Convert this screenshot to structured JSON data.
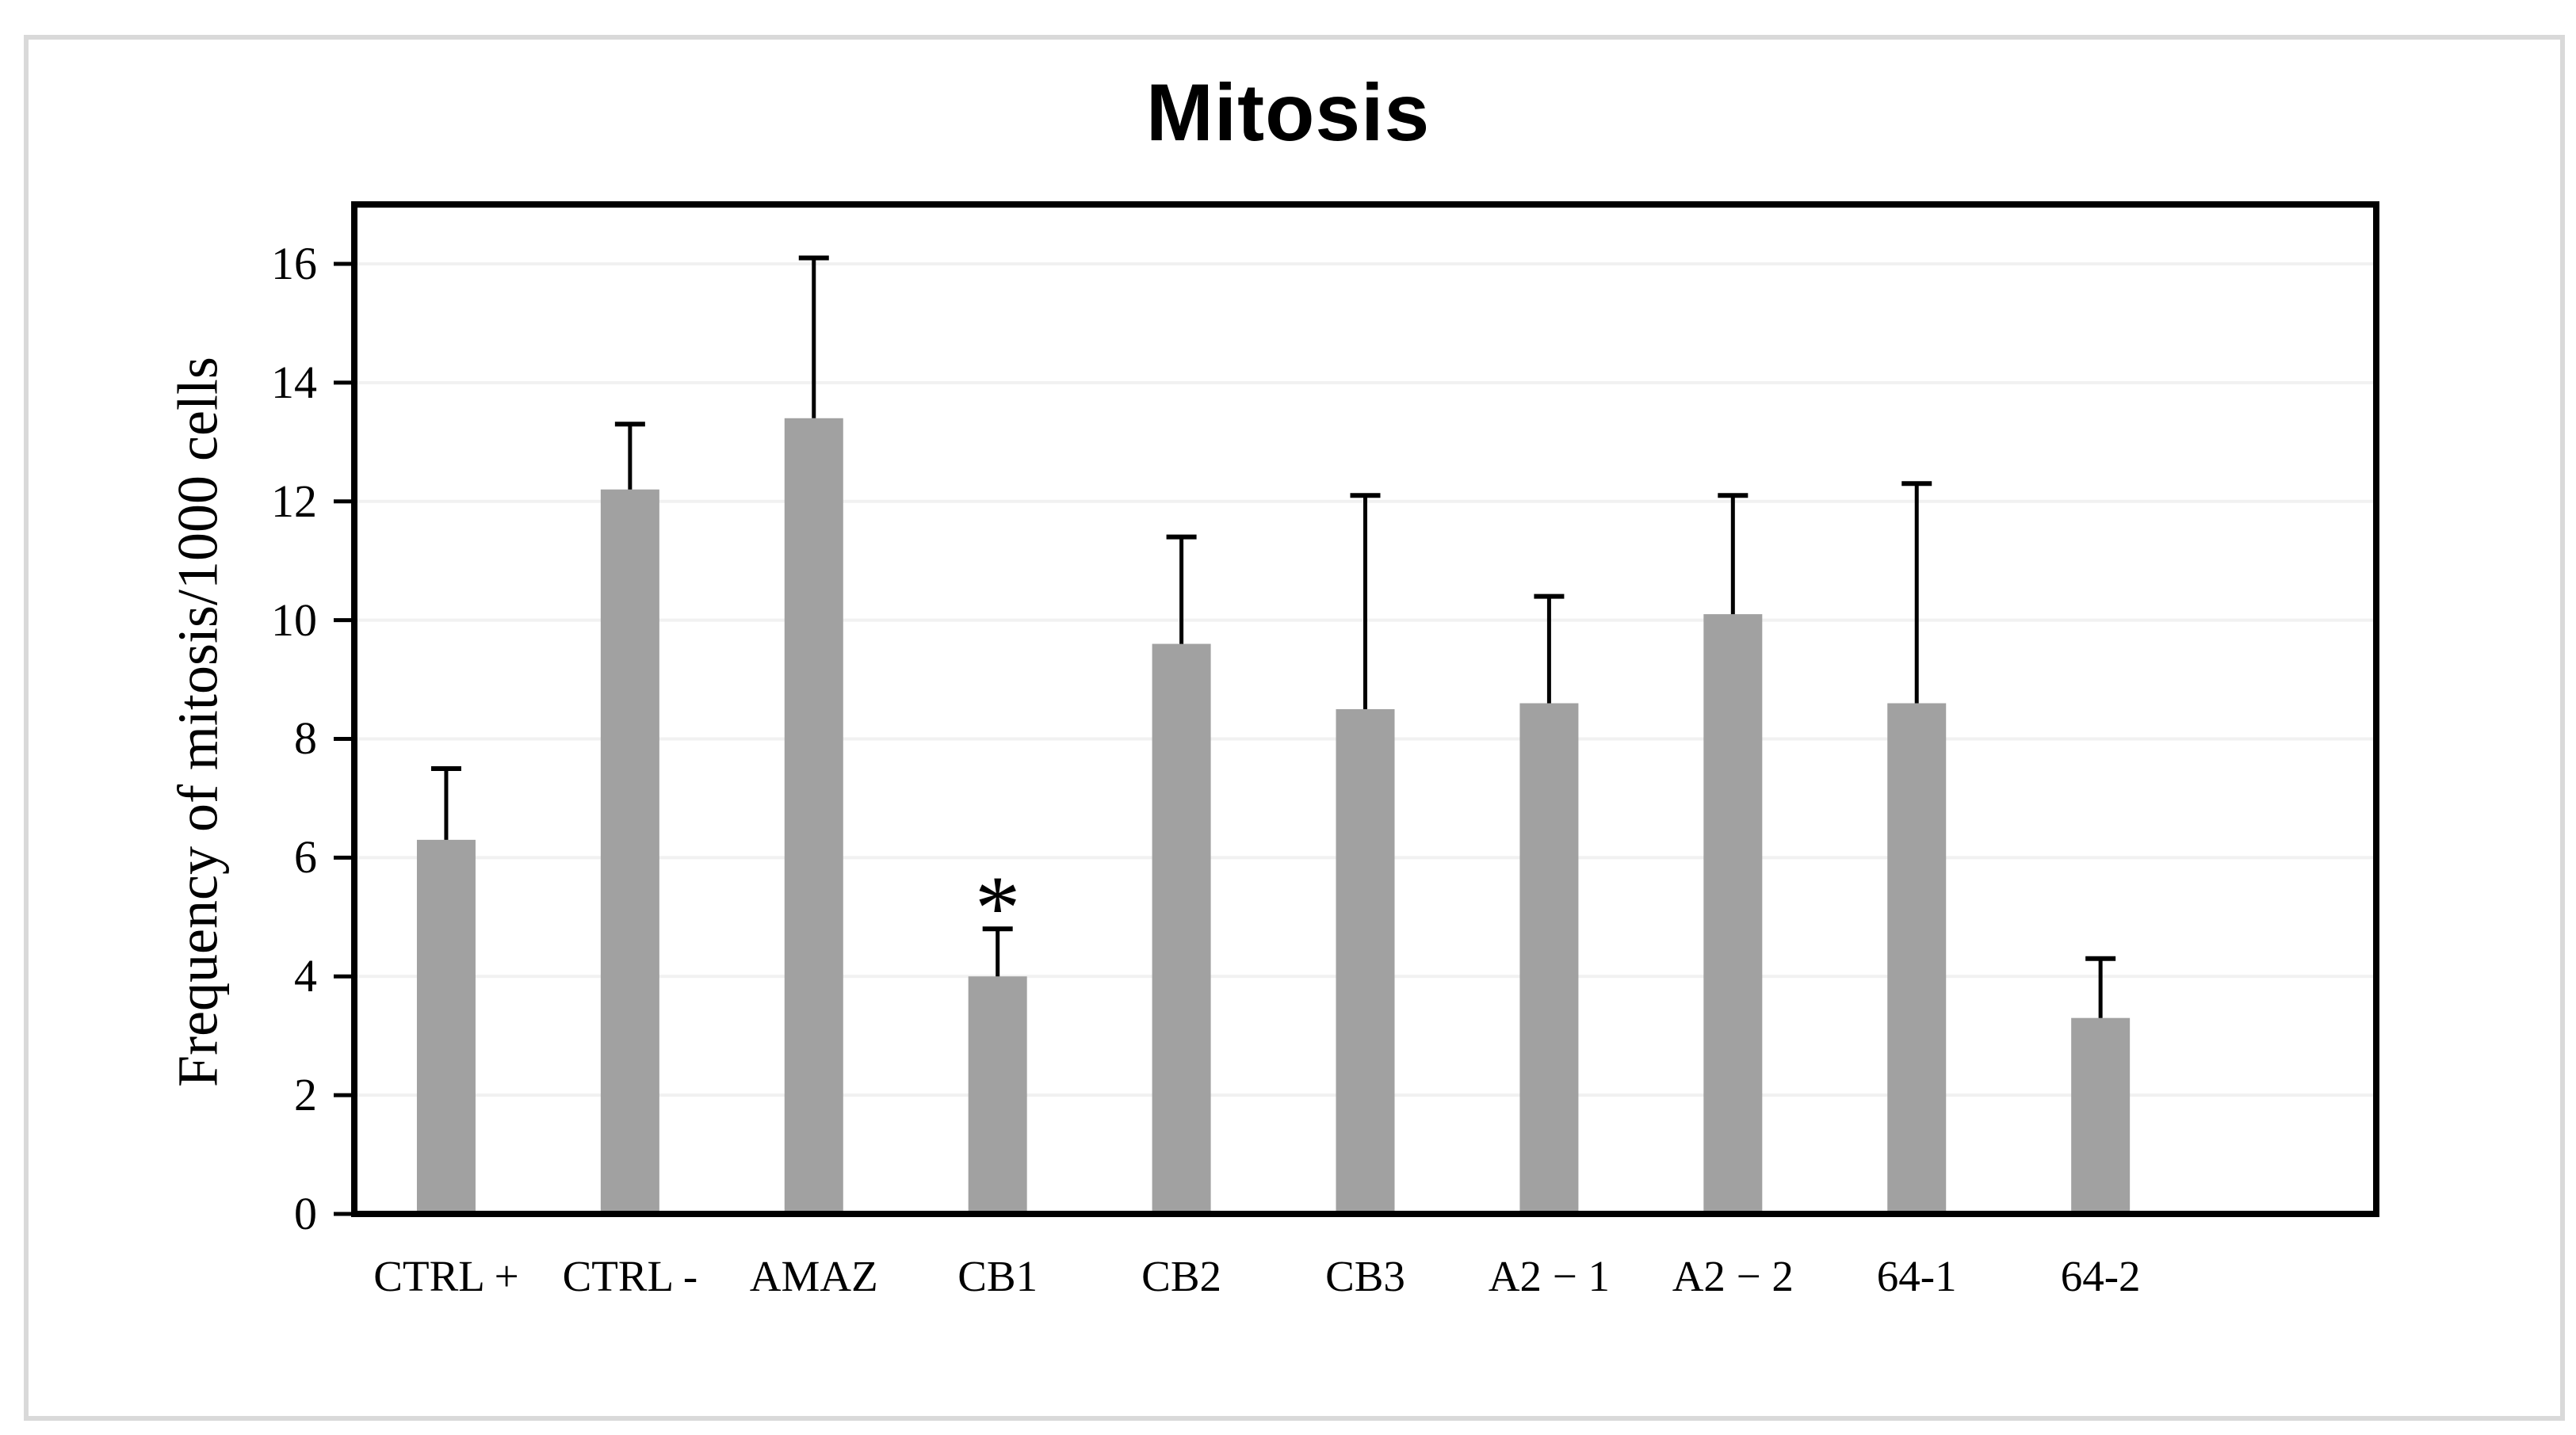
{
  "chart_data": {
    "type": "bar",
    "title": "Mitosis",
    "ylabel": "Frequency of mitosis/1000 cells",
    "xlabel": "",
    "categories": [
      "CTRL +",
      "CTRL -",
      "AMAZ",
      "CB1",
      "CB2",
      "CB3",
      "A2 − 1",
      "A2 − 2",
      "64-1",
      "64-2"
    ],
    "values": [
      6.3,
      12.2,
      13.4,
      4.0,
      9.6,
      8.5,
      8.6,
      10.1,
      8.6,
      3.3
    ],
    "error_bar_top": [
      7.5,
      13.3,
      16.1,
      4.8,
      11.4,
      12.1,
      10.4,
      12.1,
      12.3,
      4.3
    ],
    "annotations": [
      {
        "category_index": 3,
        "text": "*"
      }
    ],
    "yticks": [
      0,
      2,
      4,
      6,
      8,
      10,
      12,
      14,
      16
    ],
    "ylim": [
      0,
      17
    ],
    "grid": true,
    "legend": false,
    "empty_trailing_slots": 1,
    "bar_color": "#a1a1a1",
    "error_color": "#000000",
    "gridline_color": "#f1f1f1",
    "frame_color": "#000000",
    "figure_border_color": "#d9d9d9",
    "background_color": "#ffffff"
  }
}
